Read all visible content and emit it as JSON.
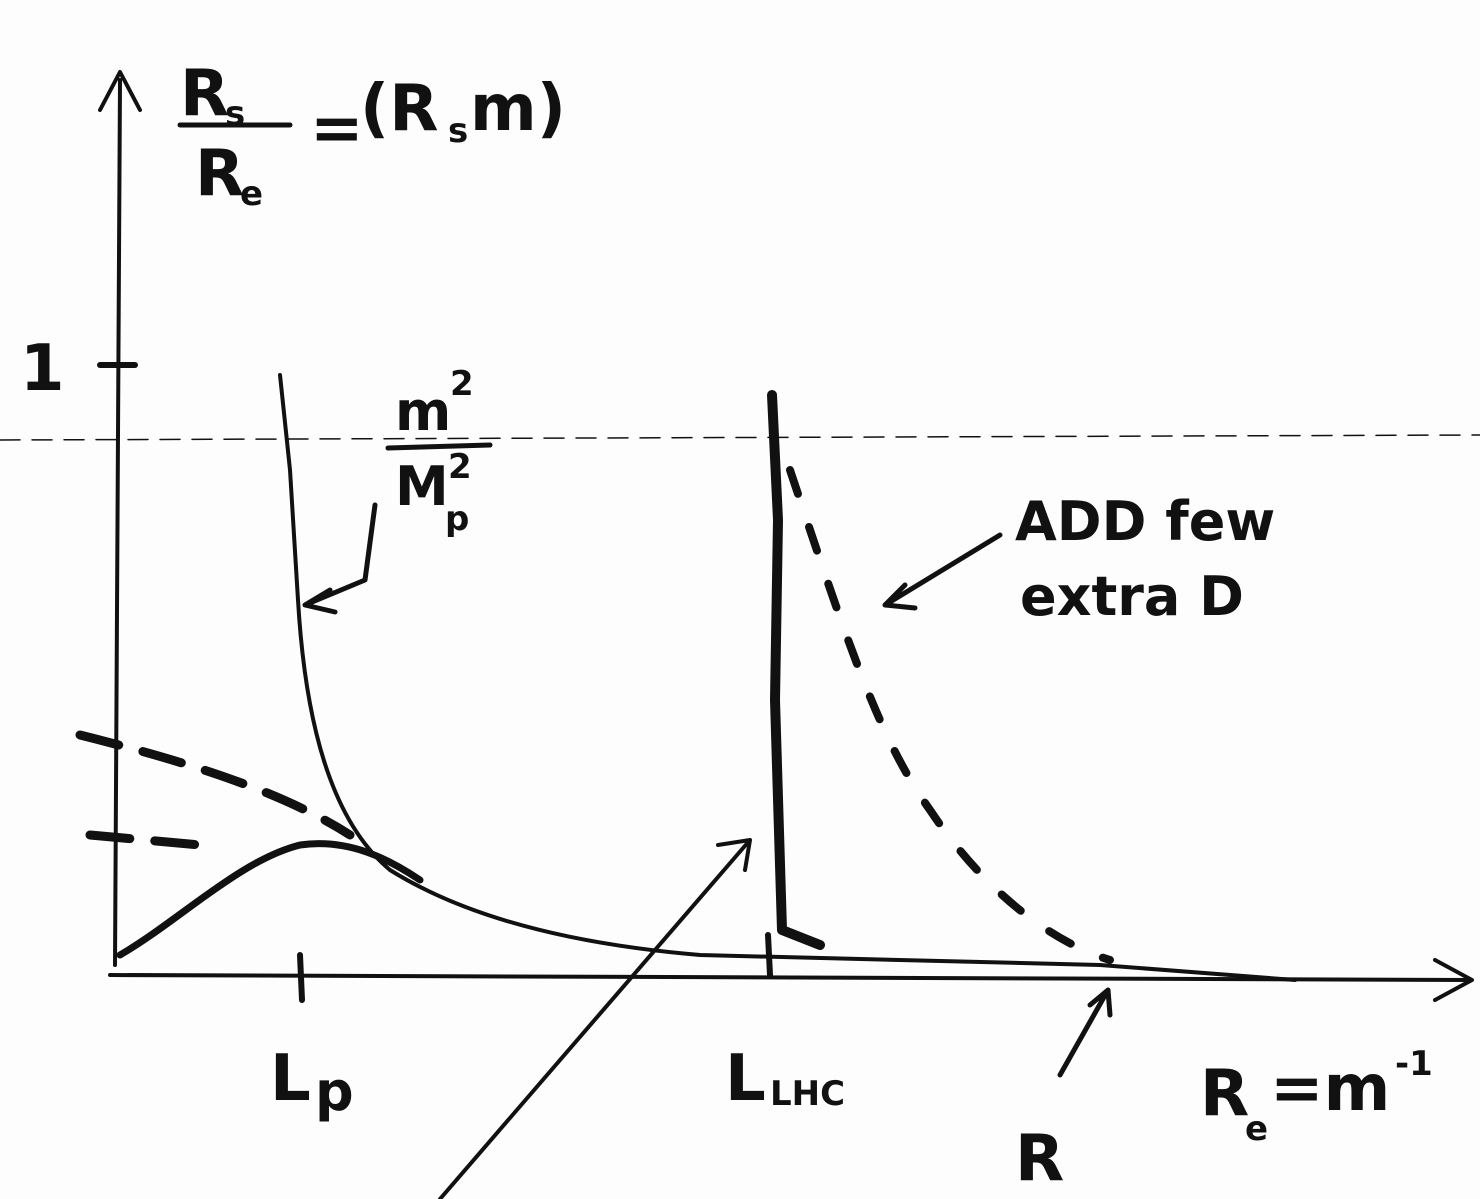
{
  "diagram": {
    "y_axis_label": {
      "numerator": {
        "base": "R",
        "sub": "s"
      },
      "denominator": {
        "base": "R",
        "sub": "e"
      },
      "equals": "=",
      "rhs": {
        "open": "(R",
        "sub": "s",
        "close": "m)"
      }
    },
    "y_tick": "1",
    "curve_label": {
      "numerator": "m",
      "numerator_sup": "2",
      "denominator": "M",
      "denominator_sub": "p",
      "denominator_sup": "2"
    },
    "add_label": {
      "line1": "ADD few",
      "line2": "extra D"
    },
    "x_ticks": {
      "lp": {
        "base": "L",
        "sub": "p"
      },
      "llhc": {
        "base": "L",
        "sub": "LHC"
      },
      "r": "R"
    },
    "x_axis_label": {
      "base": "R",
      "sub": "e",
      "rhs": "=m",
      "sup": "-1"
    }
  }
}
